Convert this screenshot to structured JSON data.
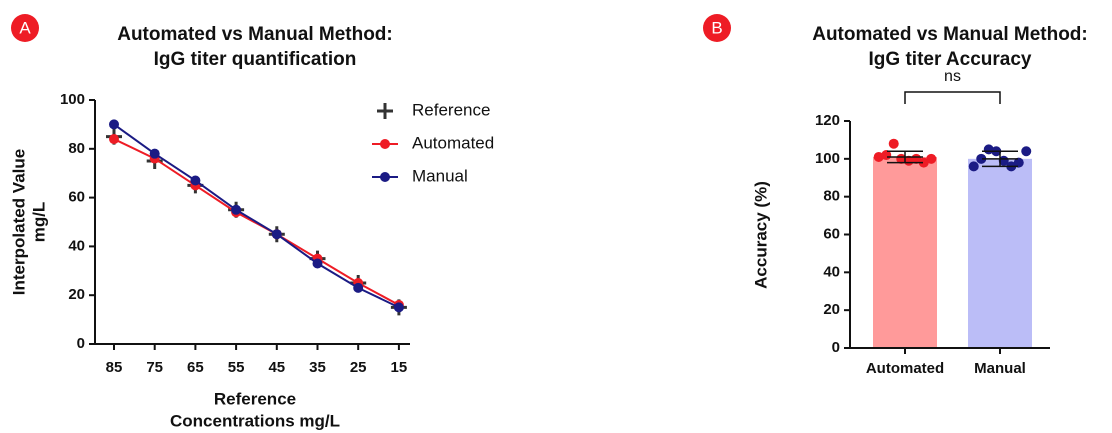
{
  "chart_data": [
    {
      "type": "line",
      "panel_label": "A",
      "title": [
        "Automated vs Manual Method:",
        "IgG titer quantification"
      ],
      "x_label": [
        "Reference",
        "Concentrations mg/L"
      ],
      "y_label": [
        "Interpolated Value",
        "mg/L"
      ],
      "categories": [
        "85",
        "75",
        "65",
        "55",
        "45",
        "35",
        "25",
        "15"
      ],
      "series": [
        {
          "name": "Reference",
          "color": "#333333",
          "marker": "plus",
          "line": false,
          "values": [
            85,
            75,
            65,
            55,
            45,
            35,
            25,
            15
          ]
        },
        {
          "name": "Automated",
          "color": "#ee1c25",
          "marker": "circle",
          "line": true,
          "values": [
            84,
            76,
            65,
            54,
            45,
            35,
            25,
            16
          ]
        },
        {
          "name": "Manual",
          "color": "#1b1b84",
          "marker": "circle",
          "line": true,
          "values": [
            90,
            78,
            67,
            55,
            45,
            33,
            23,
            15
          ]
        }
      ],
      "ylim": [
        0,
        100
      ],
      "yticks": [
        0,
        20,
        40,
        60,
        80,
        100
      ],
      "legend": "upper right"
    },
    {
      "type": "bar",
      "panel_label": "B",
      "title": [
        "Automated vs Manual Method:",
        "IgG titer Accuracy"
      ],
      "y_label": "Accuracy (%)",
      "categories": [
        "Automated",
        "Manual"
      ],
      "values": [
        101,
        100
      ],
      "errors": [
        3,
        4
      ],
      "colors": [
        "#ff9a9a",
        "#bbbdf7"
      ],
      "points": [
        [
          101,
          102,
          108,
          100,
          99,
          100,
          98,
          100
        ],
        [
          96,
          100,
          105,
          104,
          99,
          96,
          98,
          104
        ]
      ],
      "point_colors": [
        "#ee1c25",
        "#1b1b84"
      ],
      "annotation": "ns",
      "ylim": [
        0,
        120
      ],
      "yticks": [
        0,
        20,
        40,
        60,
        80,
        100,
        120
      ]
    }
  ]
}
